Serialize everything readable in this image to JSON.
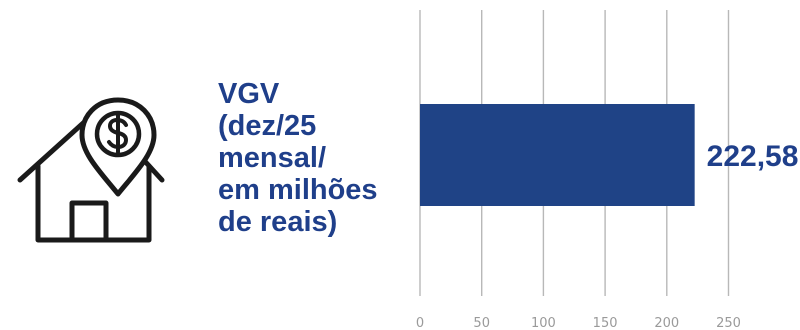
{
  "label_lines": [
    "VGV",
    "(dez/25",
    "mensal/",
    "em milhões",
    "de reais)"
  ],
  "icon": "house-money-pin-icon",
  "colors": {
    "bar": "#1f4386",
    "label": "#1f3f8a",
    "grid": "#b8b8b8",
    "tick": "#9a9a9a"
  },
  "chart_data": {
    "type": "bar",
    "orientation": "horizontal",
    "categories": [
      ""
    ],
    "values": [
      222.58
    ],
    "value_labels": [
      "222,58"
    ],
    "xlim": [
      0,
      250
    ],
    "xticks": [
      0,
      50,
      100,
      150,
      200,
      250
    ],
    "tick_labels": [
      "0",
      "50",
      "100",
      "150",
      "200",
      "250"
    ],
    "grid": true,
    "title": "",
    "xlabel": "",
    "ylabel": ""
  }
}
